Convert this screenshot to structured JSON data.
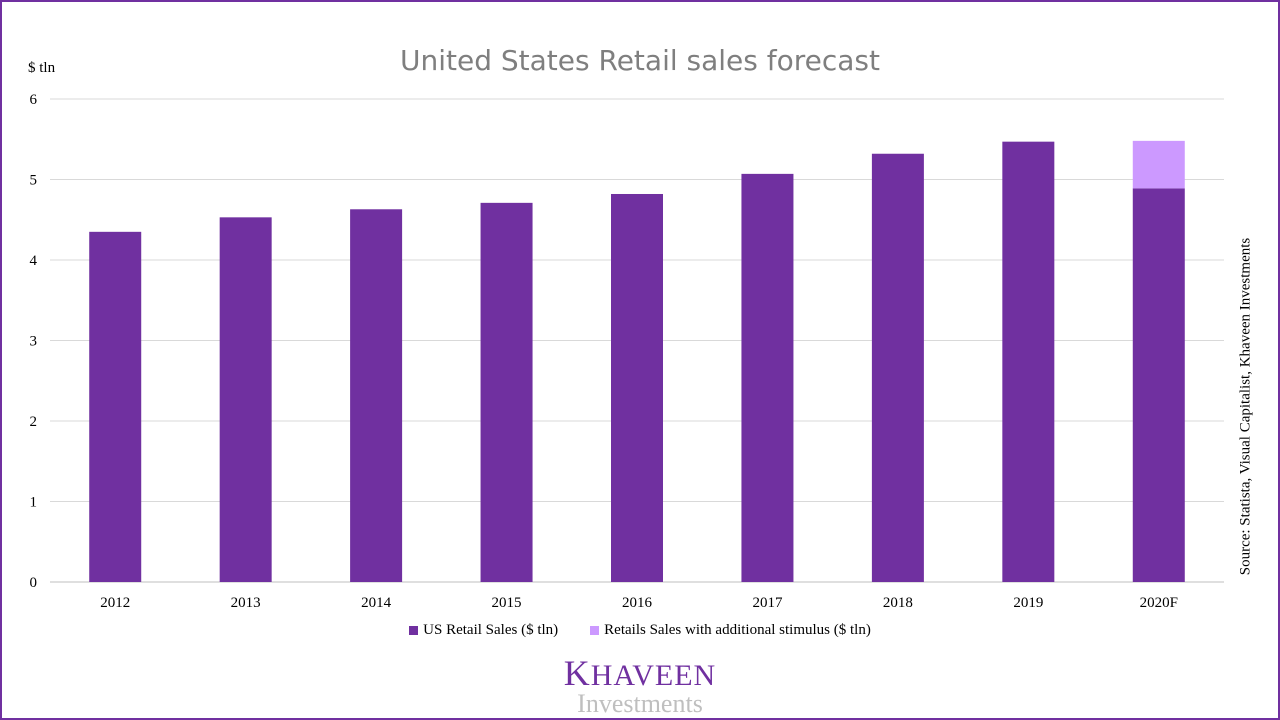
{
  "chart_data": {
    "type": "bar",
    "stacked": true,
    "title": "United States Retail sales forecast",
    "ylabel": "$ tln",
    "xlabel": "",
    "ylim": [
      0,
      6
    ],
    "yticks": [
      0,
      1,
      2,
      3,
      4,
      5,
      6
    ],
    "categories": [
      "2012",
      "2013",
      "2014",
      "2015",
      "2016",
      "2017",
      "2018",
      "2019",
      "2020F"
    ],
    "series": [
      {
        "name": "US Retail Sales ($ tln)",
        "color": "#7030a0",
        "values": [
          4.35,
          4.53,
          4.63,
          4.71,
          4.82,
          5.07,
          5.32,
          5.47,
          4.89
        ]
      },
      {
        "name": "Retails Sales with additional stimulus ($ tln)",
        "color": "#cc99ff",
        "values": [
          0,
          0,
          0,
          0,
          0,
          0,
          0,
          0,
          0.59
        ]
      }
    ],
    "grid": true,
    "legend_position": "bottom"
  },
  "source": "Source: Statista, Visual Capitalist, Khaveen Investments",
  "logo": {
    "main_first": "K",
    "main_rest": "HAVEEN",
    "sub": "Investments"
  },
  "colors": {
    "frame": "#7030a0",
    "grid": "#d9d9d9",
    "title": "#7f7f7f"
  }
}
